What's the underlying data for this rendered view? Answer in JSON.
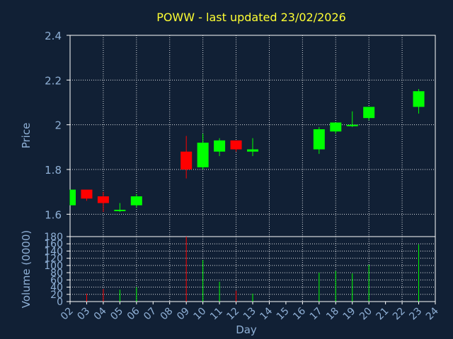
{
  "chart_data": [
    {
      "type": "candlestick",
      "title": "POWW - last updated 23/02/2026",
      "ylabel": "Price",
      "ylim": [
        1.5,
        2.4
      ],
      "yticks": [
        "1.6",
        "1.8",
        "2",
        "2.2",
        "2.4"
      ],
      "grid": true,
      "colors": {
        "up": "#00ff00",
        "down": "#ff0000",
        "background": "#112035",
        "title": "#ffff33",
        "labels": "#8fb0d6"
      },
      "candles": [
        {
          "day": "02",
          "open": 1.64,
          "close": 1.71,
          "high": 1.71,
          "low": 1.64
        },
        {
          "day": "03",
          "open": 1.71,
          "close": 1.67,
          "high": 1.71,
          "low": 1.66
        },
        {
          "day": "04",
          "open": 1.68,
          "close": 1.65,
          "high": 1.7,
          "low": 1.61
        },
        {
          "day": "05",
          "open": 1.615,
          "close": 1.62,
          "high": 1.65,
          "low": 1.61
        },
        {
          "day": "06",
          "open": 1.64,
          "close": 1.68,
          "high": 1.69,
          "low": 1.63
        },
        {
          "day": "09",
          "open": 1.88,
          "close": 1.8,
          "high": 1.95,
          "low": 1.76
        },
        {
          "day": "10",
          "open": 1.81,
          "close": 1.92,
          "high": 1.96,
          "low": 1.8
        },
        {
          "day": "11",
          "open": 1.88,
          "close": 1.93,
          "high": 1.94,
          "low": 1.86
        },
        {
          "day": "12",
          "open": 1.93,
          "close": 1.89,
          "high": 1.93,
          "low": 1.88
        },
        {
          "day": "13",
          "open": 1.88,
          "close": 1.89,
          "high": 1.94,
          "low": 1.86
        },
        {
          "day": "17",
          "open": 1.89,
          "close": 1.98,
          "high": 1.99,
          "low": 1.87
        },
        {
          "day": "18",
          "open": 1.97,
          "close": 2.01,
          "high": 2.01,
          "low": 1.96
        },
        {
          "day": "19",
          "open": 1.995,
          "close": 2.0,
          "high": 2.06,
          "low": 1.99
        },
        {
          "day": "20",
          "open": 2.03,
          "close": 2.08,
          "high": 2.08,
          "low": 2.02
        },
        {
          "day": "23",
          "open": 2.08,
          "close": 2.15,
          "high": 2.16,
          "low": 2.05
        }
      ]
    },
    {
      "type": "bar",
      "ylabel": "Volume (0000)",
      "xlabel": "Day",
      "ylim": [
        0,
        180
      ],
      "yticks": [
        "0",
        "20",
        "40",
        "60",
        "80",
        "100",
        "120",
        "140",
        "160",
        "180"
      ],
      "categories": [
        "02",
        "03",
        "04",
        "05",
        "06",
        "07",
        "08",
        "09",
        "10",
        "11",
        "12",
        "13",
        "14",
        "15",
        "16",
        "17",
        "18",
        "19",
        "20",
        "21",
        "22",
        "23",
        "24"
      ],
      "values": [
        null,
        22,
        35,
        33,
        40,
        null,
        null,
        180,
        115,
        55,
        30,
        22,
        null,
        null,
        null,
        80,
        85,
        78,
        102,
        null,
        null,
        158,
        null
      ],
      "bar_colors": [
        "",
        "#ff0000",
        "#ff0000",
        "#00ff00",
        "#00ff00",
        "",
        "",
        "#ff0000",
        "#00ff00",
        "#00ff00",
        "#ff0000",
        "#00ff00",
        "",
        "",
        "",
        "#00ff00",
        "#00ff00",
        "#00ff00",
        "#00ff00",
        "",
        "",
        "#00ff00",
        ""
      ]
    }
  ]
}
